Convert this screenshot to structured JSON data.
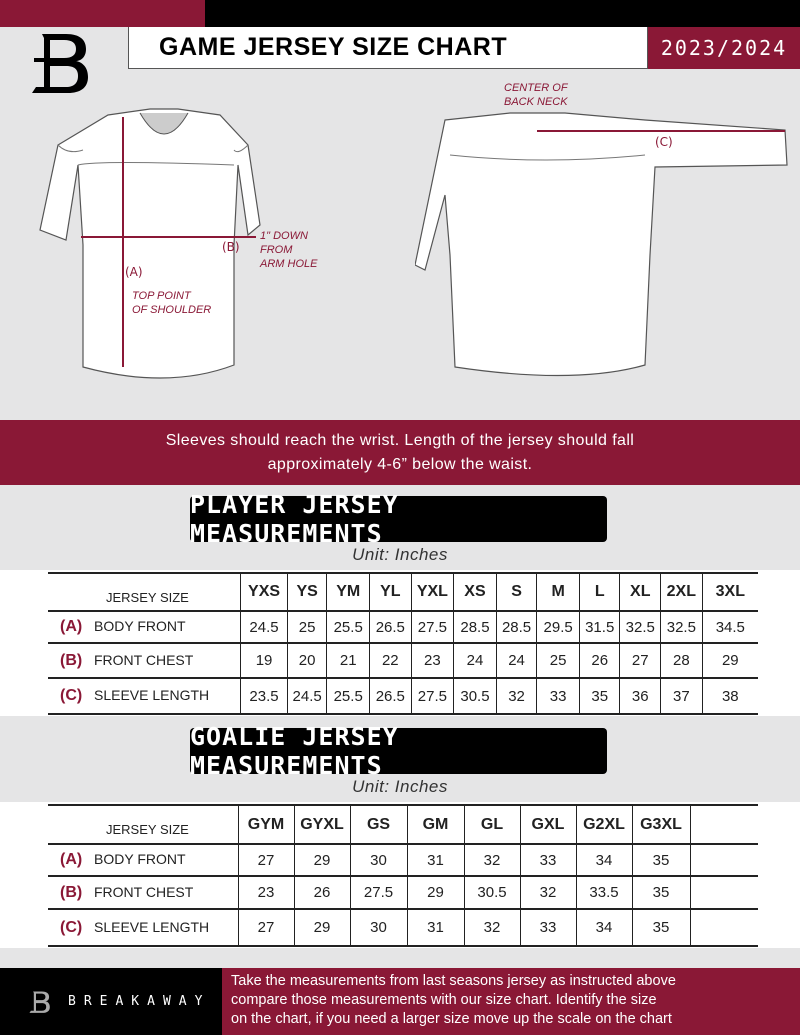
{
  "header": {
    "title": "GAME JERSEY SIZE CHART",
    "season": "2023/2024"
  },
  "diagram": {
    "front_label_a": "(A)",
    "front_label_b": "(B)",
    "back_label_c": "(C)",
    "note_shoulder": [
      "TOP POINT",
      "OF SHOULDER"
    ],
    "note_armhole": [
      "1\" DOWN",
      "FROM",
      "ARM HOLE"
    ],
    "note_back_neck": [
      "CENTER OF",
      "BACK NECK"
    ]
  },
  "instructions": [
    "Sleeves should reach the wrist. Length of the jersey should fall",
    "approximately 4-6” below the waist."
  ],
  "player": {
    "title": "PLAYER JERSEY MEASUREMENTS",
    "unit": "Unit: Inches",
    "size_header": "JERSEY SIZE",
    "sizes": [
      "YXS",
      "YS",
      "YM",
      "YL",
      "YXL",
      "XS",
      "S",
      "M",
      "L",
      "XL",
      "2XL",
      "3XL"
    ],
    "rows": [
      {
        "letter": "(A)",
        "label": "BODY FRONT",
        "values": [
          "24.5",
          "25",
          "25.5",
          "26.5",
          "27.5",
          "28.5",
          "28.5",
          "29.5",
          "31.5",
          "32.5",
          "32.5",
          "34.5"
        ]
      },
      {
        "letter": "(B)",
        "label": "FRONT CHEST",
        "values": [
          "19",
          "20",
          "21",
          "22",
          "23",
          "24",
          "24",
          "25",
          "26",
          "27",
          "28",
          "29"
        ]
      },
      {
        "letter": "(C)",
        "label": "SLEEVE LENGTH",
        "values": [
          "23.5",
          "24.5",
          "25.5",
          "26.5",
          "27.5",
          "30.5",
          "32",
          "33",
          "35",
          "36",
          "37",
          "38"
        ]
      }
    ]
  },
  "goalie": {
    "title": "GOALIE JERSEY MEASUREMENTS",
    "unit": "Unit: Inches",
    "size_header": "JERSEY SIZE",
    "sizes": [
      "GYM",
      "GYXL",
      "GS",
      "GM",
      "GL",
      "GXL",
      "G2XL",
      "G3XL",
      ""
    ],
    "rows": [
      {
        "letter": "(A)",
        "label": "BODY FRONT",
        "values": [
          "27",
          "29",
          "30",
          "31",
          "32",
          "33",
          "34",
          "35",
          ""
        ]
      },
      {
        "letter": "(B)",
        "label": "FRONT CHEST",
        "values": [
          "23",
          "26",
          "27.5",
          "29",
          "30.5",
          "32",
          "33.5",
          "35",
          ""
        ]
      },
      {
        "letter": "(C)",
        "label": "SLEEVE LENGTH",
        "values": [
          "27",
          "29",
          "30",
          "31",
          "32",
          "33",
          "34",
          "35",
          ""
        ]
      }
    ]
  },
  "footer": {
    "brand": "BREAKAWAY",
    "text": [
      "Take the measurements from last seasons jersey as instructed above",
      "compare those measurements  with our size chart. Identify the size",
      "on the chart, if you need a larger size move up the scale on the chart"
    ]
  },
  "colors": {
    "brand": "#8a1836",
    "background": "#e5e5e6"
  }
}
